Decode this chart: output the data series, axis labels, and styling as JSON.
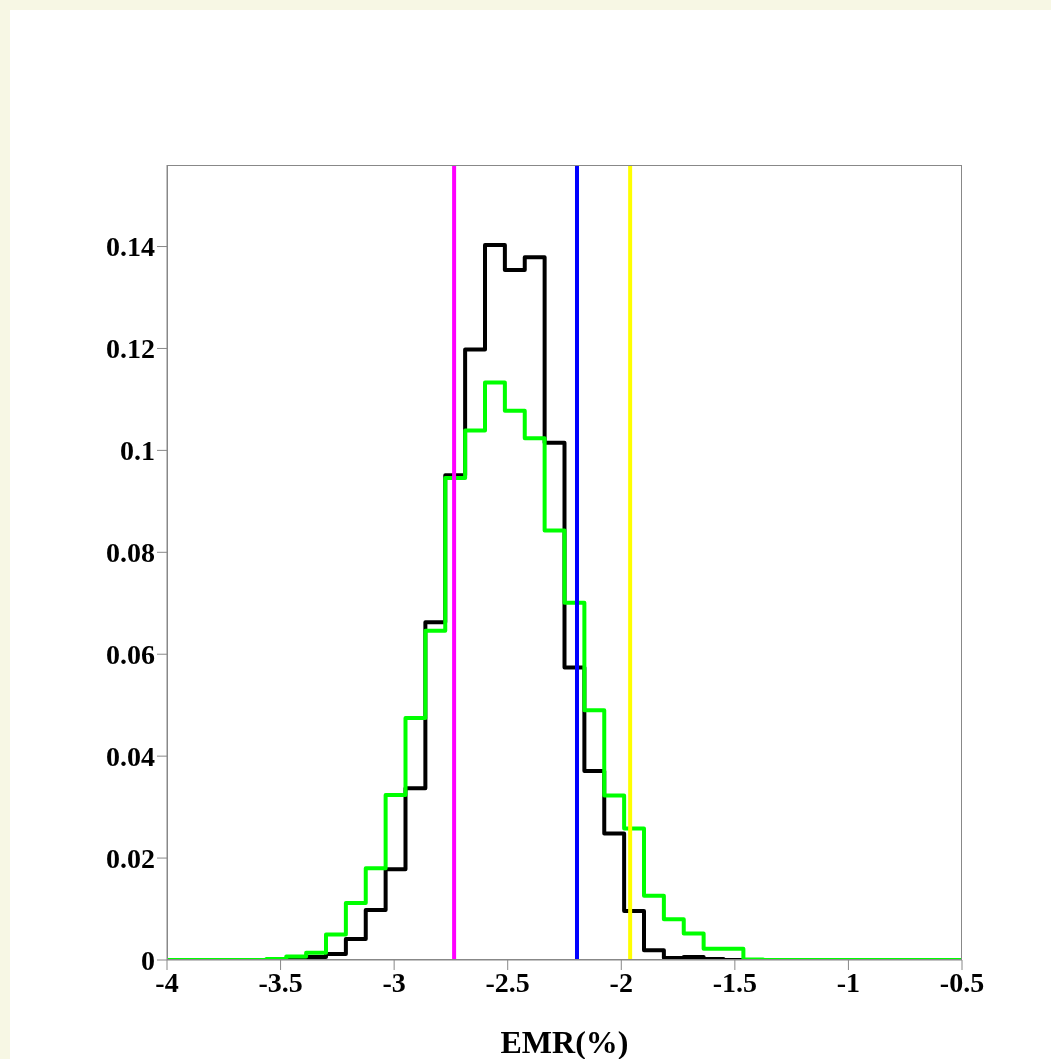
{
  "chart_data": {
    "type": "histogram",
    "xlabel": "EMR(%)",
    "bins": [
      -4,
      -3.9125,
      -3.825,
      -3.7375,
      -3.65,
      -3.5625,
      -3.475,
      -3.3875,
      -3.3,
      -3.2125,
      -3.125,
      -3.0375,
      -2.95,
      -2.8625,
      -2.775,
      -2.6875,
      -2.6,
      -2.5125,
      -2.425,
      -2.3375,
      -2.25,
      -2.1625,
      -2.075,
      -1.9875,
      -1.9,
      -1.8125,
      -1.725,
      -1.6375,
      -1.55,
      -1.4625,
      -1.375,
      -1.2875,
      -1.2,
      -1.1125,
      -1.025,
      -0.9375,
      -0.85,
      -0.7625,
      -0.675,
      -0.5875,
      -0.5
    ],
    "series": [
      {
        "color": "#000000",
        "values": [
          0,
          0,
          0,
          0,
          0,
          0,
          0.0003,
          0.0006,
          0.0012,
          0.0041,
          0.0098,
          0.0178,
          0.0337,
          0.0663,
          0.0951,
          0.1198,
          0.1403,
          0.1354,
          0.1379,
          0.1015,
          0.0574,
          0.0371,
          0.0248,
          0.0096,
          0.0019,
          0.0004,
          0.0006,
          0.0002,
          0,
          0,
          0,
          0,
          0,
          0,
          0,
          0,
          0,
          0,
          0,
          0
        ]
      },
      {
        "color": "#00ff00",
        "values": [
          0,
          0,
          0,
          0,
          0,
          0.0002,
          0.0007,
          0.0014,
          0.005,
          0.0112,
          0.018,
          0.0324,
          0.0475,
          0.0646,
          0.0946,
          0.1039,
          0.1133,
          0.1078,
          0.1024,
          0.0843,
          0.0701,
          0.049,
          0.0323,
          0.0258,
          0.0126,
          0.008,
          0.0052,
          0.0022,
          0.0022,
          0.0001,
          0,
          0,
          0,
          0,
          0,
          0,
          0,
          0,
          0,
          0
        ]
      }
    ],
    "xlim": [
      -4,
      -0.5
    ],
    "xticks": [
      -4,
      -3.5,
      -3,
      -2.5,
      -2,
      -1.5,
      -1,
      -0.5
    ],
    "ylim": [
      0,
      0.156
    ],
    "yticks": [
      0,
      0.02,
      0.04,
      0.06,
      0.08,
      0.1,
      0.12,
      0.14
    ],
    "ref_lines": [
      {
        "axis": "x",
        "value": -2.736,
        "color": "#ff00ff"
      },
      {
        "axis": "x",
        "value": -2.195,
        "color": "#0000ff"
      },
      {
        "axis": "x",
        "value": -1.961,
        "color": "#ffff00"
      }
    ]
  }
}
